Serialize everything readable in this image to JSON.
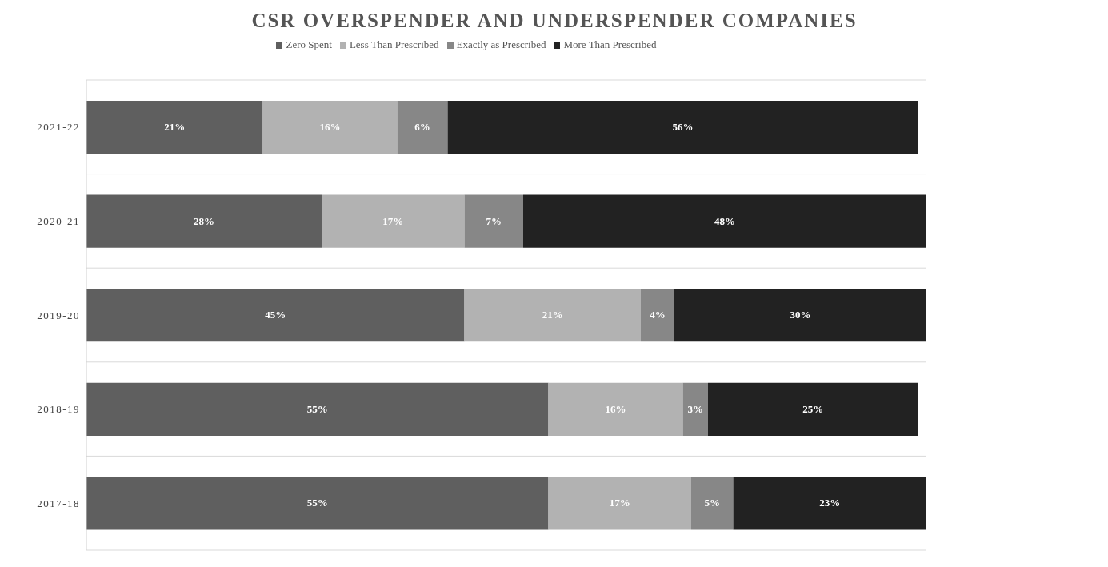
{
  "chart_data": {
    "type": "bar",
    "orientation": "horizontal",
    "stacked": true,
    "title": "CSR OVERSPENDER AND UNDERSPENDER COMPANIES",
    "categories": [
      "2021-22",
      "2020-21",
      "2019-20",
      "2018-19",
      "2017-18"
    ],
    "series": [
      {
        "name": "Zero Spent",
        "color": "#5f5f5f",
        "values": [
          21,
          28,
          45,
          55,
          55
        ],
        "value_labels": [
          "21%",
          "28%",
          "45%",
          "55%",
          "55%"
        ]
      },
      {
        "name": "Less Than Prescribed",
        "color": "#b2b2b2",
        "values": [
          16,
          17,
          21,
          16,
          17
        ],
        "value_labels": [
          "16%",
          "17%",
          "21%",
          "16%",
          "17%"
        ]
      },
      {
        "name": "Exactly as Prescribed",
        "color": "#878787",
        "values": [
          6,
          7,
          4,
          3,
          5
        ],
        "value_labels": [
          "6%",
          "7%",
          "4%",
          "3%",
          "5%"
        ]
      },
      {
        "name": "More Than Prescribed",
        "color": "#222222",
        "values": [
          56,
          48,
          30,
          25,
          23
        ],
        "value_labels": [
          "56%",
          "48%",
          "30%",
          "25%",
          "23%"
        ]
      }
    ],
    "legend": "top",
    "grid": "y"
  }
}
